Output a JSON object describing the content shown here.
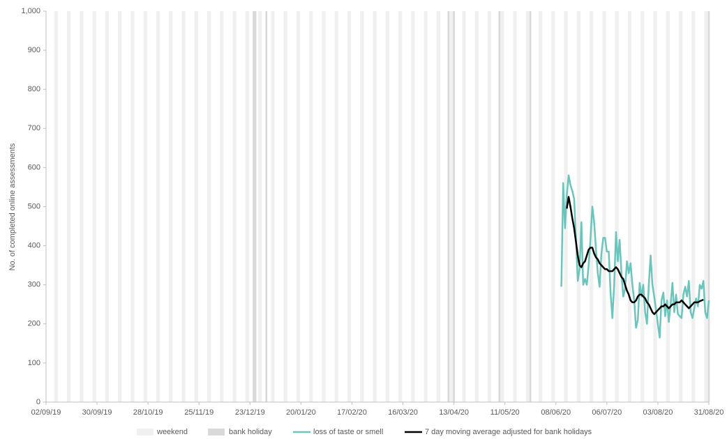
{
  "chart_data": {
    "type": "line",
    "y_label": "No. of completed online assessments",
    "xlim": [
      "02/09/19",
      "31/08/20"
    ],
    "xticks": [
      "02/09/19",
      "30/09/19",
      "28/10/19",
      "25/11/19",
      "23/12/19",
      "20/01/20",
      "17/02/20",
      "16/03/20",
      "13/04/20",
      "11/05/20",
      "08/06/20",
      "06/07/20",
      "03/08/20",
      "31/08/20"
    ],
    "ylim": [
      0,
      1000
    ],
    "yticks": [
      0,
      100,
      200,
      300,
      400,
      500,
      600,
      700,
      800,
      900,
      {
        "value": 1000,
        "label": "1,000"
      }
    ],
    "weekend": {
      "name": "weekend",
      "color": "#f0f0f0"
    },
    "bank_holiday": {
      "name": "bank holiday",
      "color": "#d9d9d9",
      "dates": [
        "25/12/19",
        "26/12/19",
        "01/01/20",
        "10/04/20",
        "13/04/20",
        "08/05/20",
        "25/05/20",
        "31/08/20"
      ]
    },
    "x": [
      "11/06/20",
      "12/06/20",
      "13/06/20",
      "14/06/20",
      "15/06/20",
      "16/06/20",
      "17/06/20",
      "18/06/20",
      "19/06/20",
      "20/06/20",
      "21/06/20",
      "22/06/20",
      "23/06/20",
      "24/06/20",
      "25/06/20",
      "26/06/20",
      "27/06/20",
      "28/06/20",
      "29/06/20",
      "30/06/20",
      "01/07/20",
      "02/07/20",
      "03/07/20",
      "04/07/20",
      "05/07/20",
      "06/07/20",
      "07/07/20",
      "08/07/20",
      "09/07/20",
      "10/07/20",
      "11/07/20",
      "12/07/20",
      "13/07/20",
      "14/07/20",
      "15/07/20",
      "16/07/20",
      "17/07/20",
      "18/07/20",
      "19/07/20",
      "20/07/20",
      "21/07/20",
      "22/07/20",
      "23/07/20",
      "24/07/20",
      "25/07/20",
      "26/07/20",
      "27/07/20",
      "28/07/20",
      "29/07/20",
      "30/07/20",
      "31/07/20",
      "01/08/20",
      "02/08/20",
      "03/08/20",
      "04/08/20",
      "05/08/20",
      "06/08/20",
      "07/08/20",
      "08/08/20",
      "09/08/20",
      "10/08/20",
      "11/08/20",
      "12/08/20",
      "13/08/20",
      "14/08/20",
      "15/08/20",
      "16/08/20",
      "17/08/20",
      "18/08/20",
      "19/08/20",
      "20/08/20",
      "21/08/20",
      "22/08/20",
      "23/08/20",
      "24/08/20",
      "25/08/20",
      "26/08/20",
      "27/08/20",
      "28/08/20",
      "29/08/20",
      "30/08/20",
      "31/08/20"
    ],
    "series": [
      {
        "name": "loss of taste or smell",
        "color": "#6cc5bc",
        "width": 2.5,
        "values": [
          295,
          560,
          445,
          530,
          580,
          555,
          540,
          520,
          420,
          310,
          340,
          460,
          300,
          315,
          300,
          350,
          420,
          500,
          460,
          390,
          330,
          295,
          380,
          420,
          420,
          385,
          385,
          280,
          215,
          300,
          435,
          360,
          415,
          330,
          270,
          290,
          360,
          330,
          355,
          300,
          260,
          190,
          210,
          305,
          270,
          300,
          230,
          200,
          300,
          375,
          300,
          270,
          235,
          200,
          165,
          260,
          280,
          220,
          260,
          205,
          250,
          305,
          230,
          275,
          225,
          220,
          215,
          275,
          295,
          270,
          310,
          230,
          215,
          240,
          265,
          245,
          300,
          290,
          310,
          230,
          215,
          260
        ]
      },
      {
        "name": "7 day moving average adjusted for bank holidays",
        "color": "#000000",
        "width": 2.5,
        "values": [
          null,
          null,
          null,
          495,
          525,
          500,
          470,
          445,
          410,
          375,
          350,
          345,
          355,
          360,
          375,
          390,
          395,
          395,
          380,
          370,
          365,
          355,
          350,
          345,
          340,
          340,
          335,
          335,
          335,
          340,
          345,
          340,
          330,
          320,
          315,
          300,
          285,
          275,
          260,
          255,
          255,
          260,
          270,
          275,
          275,
          270,
          265,
          255,
          250,
          240,
          230,
          225,
          230,
          235,
          240,
          245,
          245,
          250,
          245,
          240,
          245,
          250,
          250,
          255,
          255,
          255,
          260,
          255,
          250,
          245,
          240,
          245,
          250,
          255,
          255,
          255,
          258,
          260,
          262,
          null,
          null,
          null
        ]
      }
    ]
  }
}
